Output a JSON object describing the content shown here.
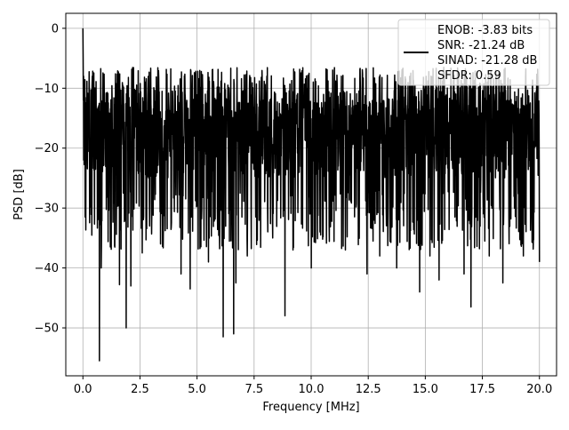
{
  "chart_data": {
    "type": "line",
    "xlabel": "Frequency [MHz]",
    "ylabel": "PSD [dB]",
    "xlim": [
      -0.75,
      20.75
    ],
    "ylim": [
      -58,
      2.5
    ],
    "xticks": [
      0.0,
      2.5,
      5.0,
      7.5,
      10.0,
      12.5,
      15.0,
      17.5,
      20.0
    ],
    "xtick_labels": [
      "0.0",
      "2.5",
      "5.0",
      "7.5",
      "10.0",
      "12.5",
      "15.0",
      "17.5",
      "20.0"
    ],
    "yticks": [
      0,
      -10,
      -20,
      -30,
      -40,
      -50
    ],
    "ytick_labels": [
      "0",
      "−10",
      "−20",
      "−30",
      "−40",
      "−50"
    ],
    "grid": true,
    "legend_position": "top-right",
    "legend_entries": [
      "ENOB: -3.83 bits",
      "SNR: -21.24 dB",
      "SINAD: -21.28 dB",
      "SFDR: 0.59"
    ],
    "series": [
      {
        "color": "#000000",
        "x_range": [
          0.0,
          20.0
        ],
        "points": 2048,
        "y_peak": 0,
        "noise_floor_mean": -19,
        "y_max_noise": -6.5,
        "y_min": -55.5,
        "dips": [
          {
            "x": 0.72,
            "y": -55.5
          },
          {
            "x": 6.15,
            "y": -51.5
          },
          {
            "x": 6.6,
            "y": -51
          },
          {
            "x": 1.9,
            "y": -50
          },
          {
            "x": 8.85,
            "y": -48
          },
          {
            "x": 17.0,
            "y": -46.5
          },
          {
            "x": 14.75,
            "y": -44
          },
          {
            "x": 4.7,
            "y": -43.5
          },
          {
            "x": 1.6,
            "y": -42.8
          },
          {
            "x": 2.1,
            "y": -43
          },
          {
            "x": 6.7,
            "y": -42.5
          },
          {
            "x": 15.6,
            "y": -42
          },
          {
            "x": 18.4,
            "y": -42.5
          },
          {
            "x": 0.8,
            "y": -40
          },
          {
            "x": 10.0,
            "y": -40
          },
          {
            "x": 12.45,
            "y": -41
          },
          {
            "x": 13.75,
            "y": -40
          },
          {
            "x": 20.0,
            "y": -39
          },
          {
            "x": 16.7,
            "y": -41
          },
          {
            "x": 4.3,
            "y": -41
          },
          {
            "x": 5.5,
            "y": -39
          },
          {
            "x": 7.2,
            "y": -38
          },
          {
            "x": 9.2,
            "y": -37
          },
          {
            "x": 11.5,
            "y": -37
          },
          {
            "x": 13.0,
            "y": -38
          },
          {
            "x": 2.6,
            "y": -37.5
          },
          {
            "x": 3.4,
            "y": -36
          },
          {
            "x": 15.2,
            "y": -38
          },
          {
            "x": 17.8,
            "y": -38
          },
          {
            "x": 19.3,
            "y": -38
          }
        ]
      }
    ]
  }
}
